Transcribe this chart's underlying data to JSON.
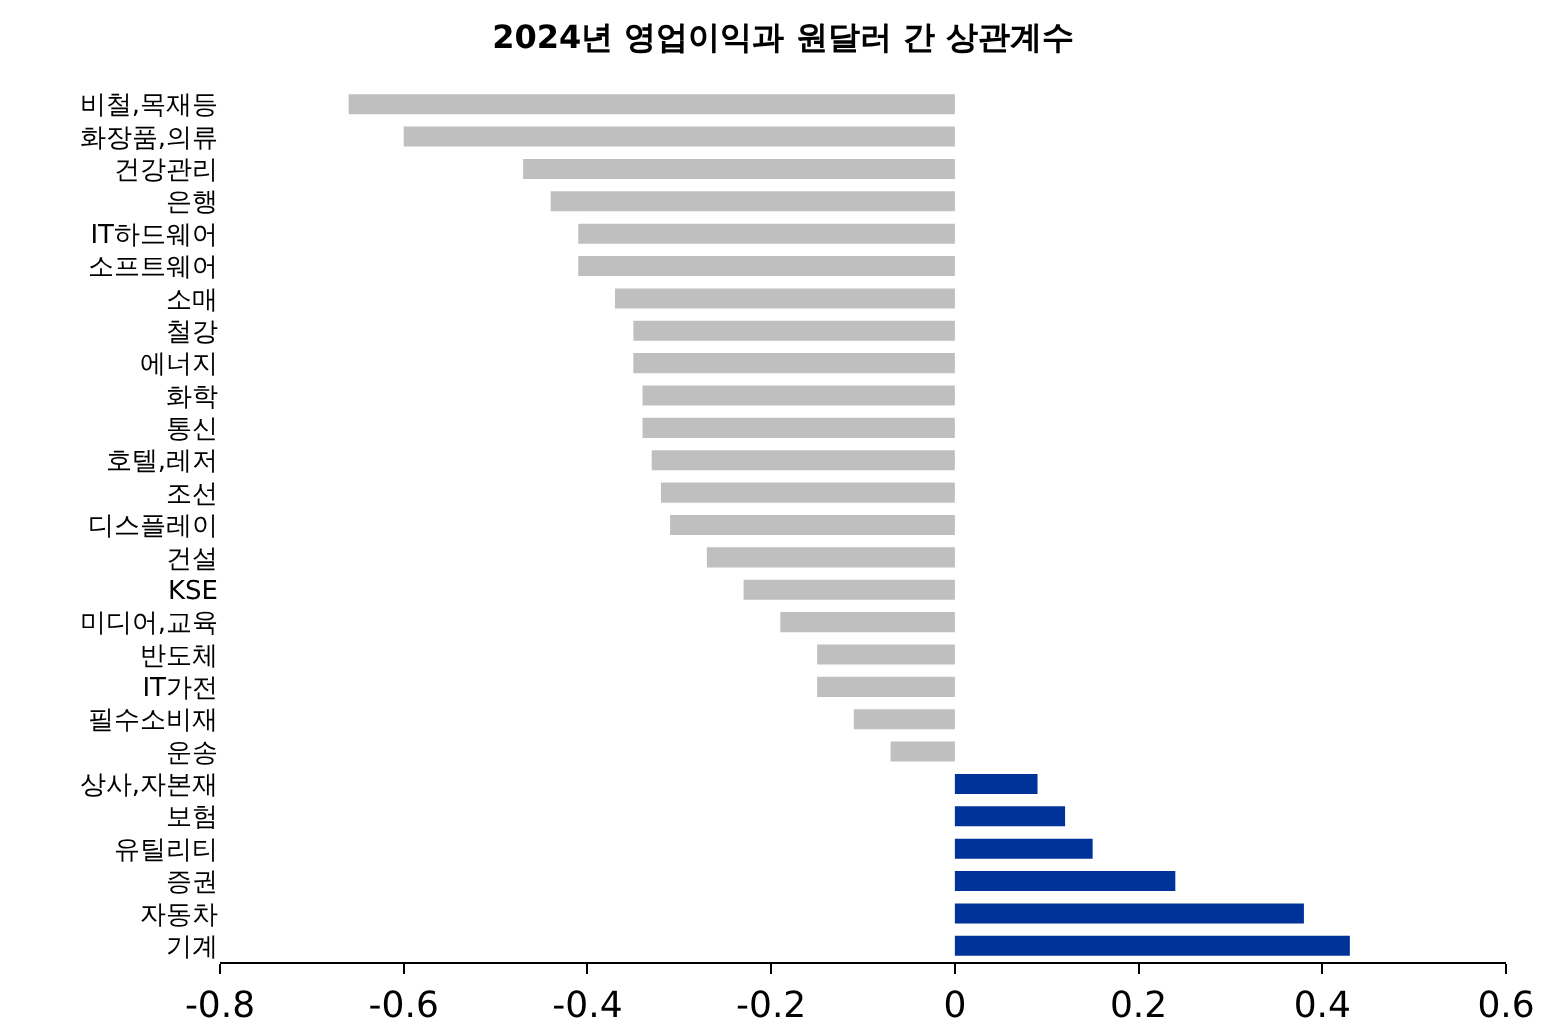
{
  "chart_data": {
    "type": "bar",
    "orientation": "horizontal",
    "title": "2024년 영업이익과 원달러 간 상관계수",
    "categories": [
      "비철,목재등",
      "화장품,의류",
      "건강관리",
      "은행",
      "IT하드웨어",
      "소프트웨어",
      "소매",
      "철강",
      "에너지",
      "화학",
      "통신",
      "호텔,레저",
      "조선",
      "디스플레이",
      "건설",
      "KSE",
      "미디어,교육",
      "반도체",
      "IT가전",
      "필수소비재",
      "운송",
      "상사,자본재",
      "보험",
      "유틸리티",
      "증권",
      "자동차",
      "기계"
    ],
    "values": [
      -0.66,
      -0.6,
      -0.47,
      -0.44,
      -0.41,
      -0.41,
      -0.37,
      -0.35,
      -0.35,
      -0.34,
      -0.34,
      -0.33,
      -0.32,
      -0.31,
      -0.27,
      -0.23,
      -0.19,
      -0.15,
      -0.15,
      -0.11,
      -0.07,
      0.09,
      0.12,
      0.15,
      0.24,
      0.38,
      0.43
    ],
    "colors": [
      "#bfbfbf",
      "#bfbfbf",
      "#bfbfbf",
      "#bfbfbf",
      "#bfbfbf",
      "#bfbfbf",
      "#bfbfbf",
      "#bfbfbf",
      "#bfbfbf",
      "#bfbfbf",
      "#bfbfbf",
      "#bfbfbf",
      "#bfbfbf",
      "#bfbfbf",
      "#bfbfbf",
      "#bfbfbf",
      "#bfbfbf",
      "#bfbfbf",
      "#bfbfbf",
      "#bfbfbf",
      "#bfbfbf",
      "#003399",
      "#003399",
      "#003399",
      "#003399",
      "#003399",
      "#003399"
    ],
    "xlim": [
      -0.8,
      0.6
    ],
    "xticks": [
      -0.8,
      -0.6,
      -0.4,
      -0.2,
      0,
      0.2,
      0.4,
      0.6
    ],
    "grid": false,
    "legend": false
  }
}
